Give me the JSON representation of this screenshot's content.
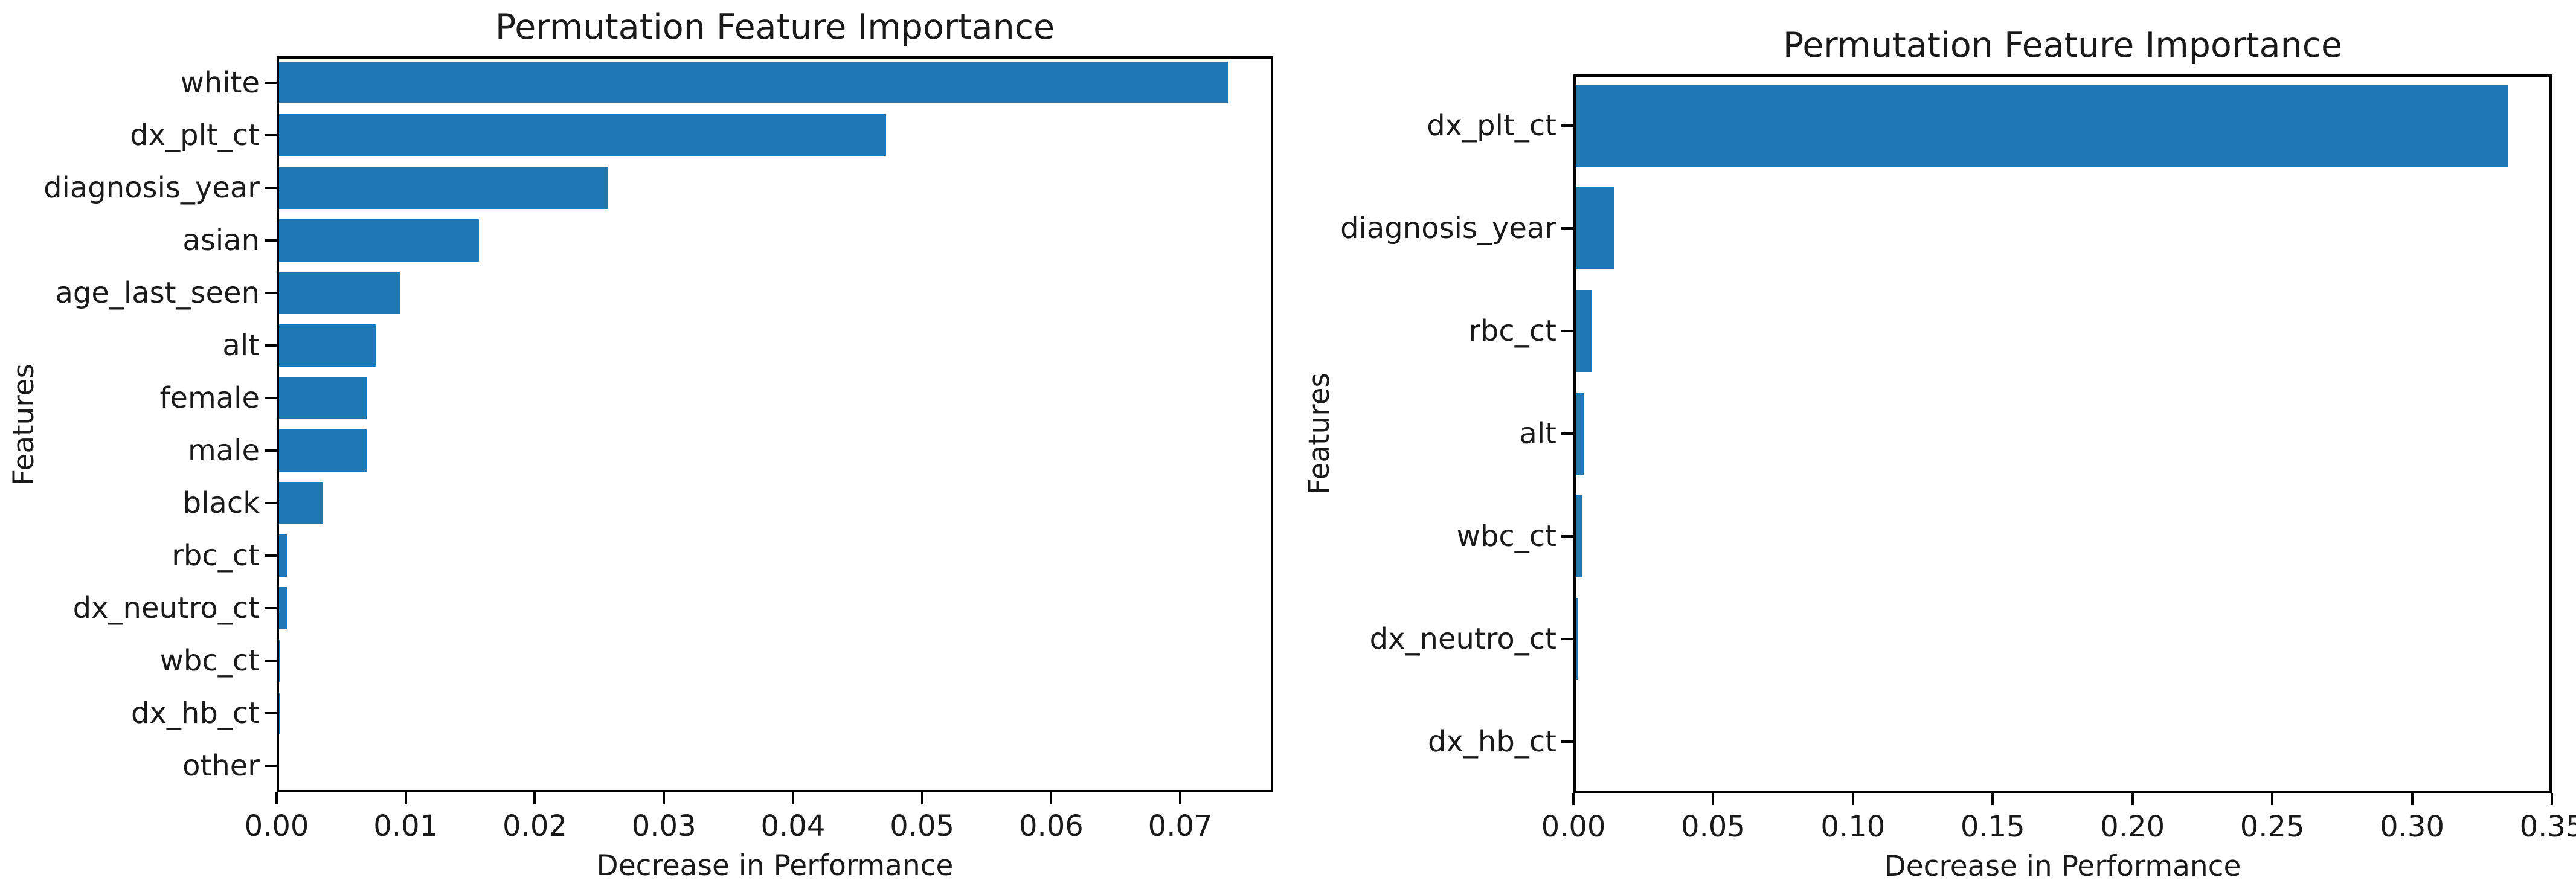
{
  "figure_background": "#ffffff",
  "chart_data": [
    {
      "type": "bar",
      "orientation": "horizontal",
      "title": "Permutation Feature Importance",
      "xlabel": "Decrease in Performance",
      "ylabel": "Features",
      "bar_color": "#1f77b4",
      "grid": false,
      "legend": null,
      "categories": [
        "white",
        "dx_plt_ct",
        "diagnosis_year",
        "asian",
        "age_last_seen",
        "alt",
        "female",
        "male",
        "black",
        "rbc_ct",
        "dx_neutro_ct",
        "wbc_ct",
        "dx_hb_ct",
        "other"
      ],
      "values": [
        0.0735,
        0.047,
        0.0255,
        0.0155,
        0.0094,
        0.0075,
        0.0068,
        0.0068,
        0.0034,
        0.0006,
        0.0006,
        0.0001,
        0.0001,
        0.0
      ],
      "xlim": [
        0,
        0.0772
      ],
      "xticks": [
        0.0,
        0.01,
        0.02,
        0.03,
        0.04,
        0.05,
        0.06,
        0.07
      ],
      "xtick_labels": [
        "0.00",
        "0.01",
        "0.02",
        "0.03",
        "0.04",
        "0.05",
        "0.06",
        "0.07"
      ]
    },
    {
      "type": "bar",
      "orientation": "horizontal",
      "title": "Permutation Feature Importance",
      "xlabel": "Decrease in Performance",
      "ylabel": "Features",
      "bar_color": "#1f77b4",
      "grid": false,
      "legend": null,
      "categories": [
        "dx_plt_ct",
        "diagnosis_year",
        "rbc_ct",
        "alt",
        "wbc_ct",
        "dx_neutro_ct",
        "dx_hb_ct"
      ],
      "values": [
        0.3333,
        0.0136,
        0.0057,
        0.0029,
        0.0023,
        0.0009,
        0.0001
      ],
      "xlim": [
        0,
        0.35
      ],
      "xticks": [
        0.0,
        0.05,
        0.1,
        0.15,
        0.2,
        0.25,
        0.3,
        0.35
      ],
      "xtick_labels": [
        "0.00",
        "0.05",
        "0.10",
        "0.15",
        "0.20",
        "0.25",
        "0.30",
        "0.35"
      ]
    }
  ]
}
